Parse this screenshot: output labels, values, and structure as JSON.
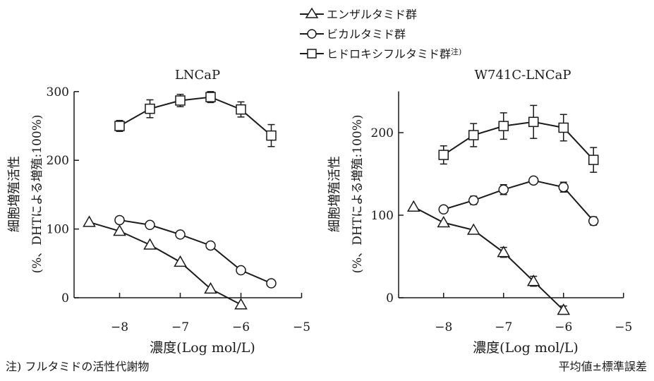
{
  "legend": {
    "items": [
      {
        "label": "エンザルタミド群",
        "marker": "triangle"
      },
      {
        "label": "ビカルタミド群",
        "marker": "circle"
      },
      {
        "label": "ヒドロキシフルタミド群",
        "sup": "注)",
        "marker": "square"
      }
    ]
  },
  "footnotes": {
    "left": "注) フルタミドの活性代謝物",
    "right": "平均値±標準誤差"
  },
  "chart_data": [
    {
      "type": "line",
      "title": "LNCaP",
      "xlabel": "濃度(Log mol/L)",
      "ylabel_line1": "細胞増殖活性",
      "ylabel_line2": "(%、DHTによる増殖:100%)",
      "xlim": [
        -8.75,
        -5
      ],
      "ylim": [
        0,
        300
      ],
      "xticks": [
        -8,
        -7,
        -6,
        -5
      ],
      "xtick_labels": [
        "−8",
        "−7",
        "−6",
        "−5"
      ],
      "yticks": [
        0,
        100,
        200,
        300
      ],
      "ytick_labels": [
        "0",
        "100",
        "200",
        "300"
      ],
      "series": [
        {
          "name": "エンザルタミド群",
          "marker": "triangle",
          "x": [
            -8.5,
            -8,
            -7.5,
            -7,
            -6.5,
            -6
          ],
          "y": [
            110,
            97,
            77,
            52,
            13,
            -10
          ],
          "err": [
            0,
            0,
            0,
            0,
            0,
            0
          ]
        },
        {
          "name": "ビカルタミド群",
          "marker": "circle",
          "x": [
            -8,
            -7.5,
            -7,
            -6.5,
            -6,
            -5.5
          ],
          "y": [
            113,
            106,
            92,
            76,
            40,
            21
          ],
          "err": [
            0,
            0,
            0,
            0,
            0,
            0
          ]
        },
        {
          "name": "ヒドロキシフルタミド群",
          "marker": "square",
          "x": [
            -8,
            -7.5,
            -7,
            -6.5,
            -6,
            -5.5
          ],
          "y": [
            250,
            275,
            287,
            292,
            274,
            236
          ],
          "err": [
            8,
            13,
            9,
            8,
            11,
            16
          ]
        }
      ]
    },
    {
      "type": "line",
      "title": "W741C-LNCaP",
      "xlabel": "濃度(Log mol/L)",
      "ylabel_line1": "細胞増殖活性",
      "ylabel_line2": "(%、DHTによる増殖:100%)",
      "xlim": [
        -8.75,
        -5
      ],
      "ylim": [
        0,
        250
      ],
      "xticks": [
        -8,
        -7,
        -6,
        -5
      ],
      "xtick_labels": [
        "−8",
        "−7",
        "−6",
        "−5"
      ],
      "yticks": [
        0,
        100,
        200
      ],
      "ytick_labels": [
        "0",
        "100",
        "200"
      ],
      "series": [
        {
          "name": "エンザルタミド群",
          "marker": "triangle",
          "x": [
            -8.5,
            -8,
            -7.5,
            -7,
            -6.5,
            -6
          ],
          "y": [
            110,
            91,
            82,
            55,
            20,
            -15
          ],
          "err": [
            0,
            0,
            0,
            6,
            6,
            5
          ]
        },
        {
          "name": "ビカルタミド群",
          "marker": "circle",
          "x": [
            -8,
            -7.5,
            -7,
            -6.5,
            -6,
            -5.5
          ],
          "y": [
            107,
            118,
            131,
            142,
            134,
            93
          ],
          "err": [
            0,
            5,
            6,
            0,
            6,
            5
          ]
        },
        {
          "name": "ヒドロキシフルタミド群",
          "marker": "square",
          "x": [
            -8,
            -7.5,
            -7,
            -6.5,
            -6,
            -5.5
          ],
          "y": [
            173,
            197,
            208,
            213,
            206,
            167
          ],
          "err": [
            11,
            14,
            16,
            20,
            16,
            15
          ]
        }
      ]
    }
  ]
}
